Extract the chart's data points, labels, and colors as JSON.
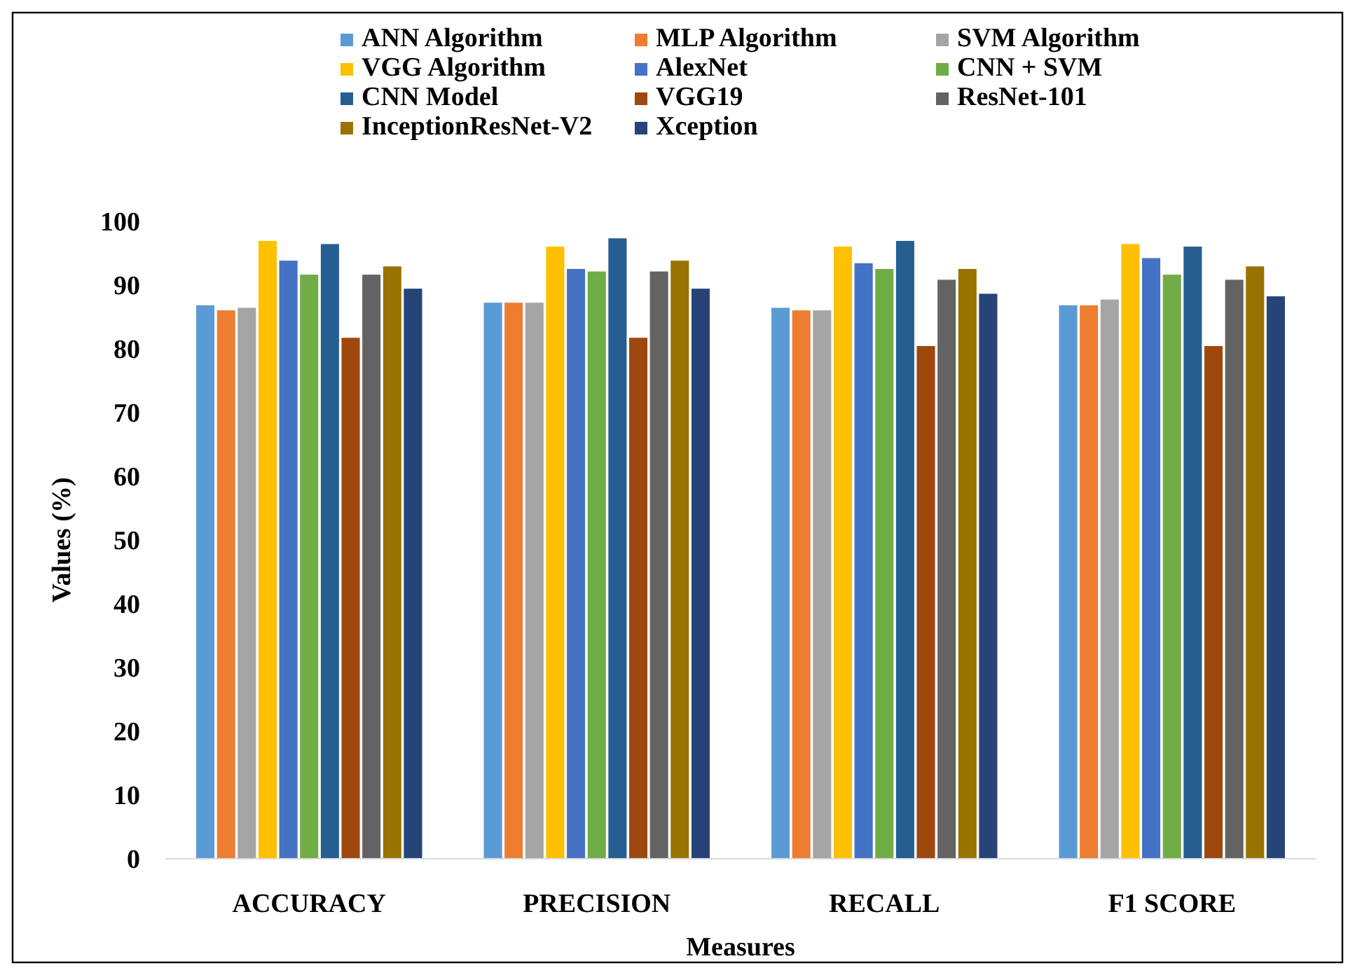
{
  "chart_data": {
    "type": "bar",
    "xlabel": "Measures",
    "ylabel": "Values (%)",
    "categories": [
      "ACCURACY",
      "PRECISION",
      "RECALL",
      "F1 SCORE"
    ],
    "ylim": [
      0,
      100
    ],
    "yticks": [
      0,
      10,
      20,
      30,
      40,
      50,
      60,
      70,
      80,
      90,
      100
    ],
    "grid": false,
    "legend": "top",
    "series": [
      {
        "name": "ANN Algorithm",
        "color": "#5b9bd5",
        "values": [
          86.9,
          87.3,
          86.5,
          86.9
        ]
      },
      {
        "name": "MLP Algorithm",
        "color": "#ed7d31",
        "values": [
          86.1,
          87.3,
          86.1,
          86.9
        ]
      },
      {
        "name": "SVM Algorithm",
        "color": "#a5a5a5",
        "values": [
          86.5,
          87.3,
          86.1,
          87.8
        ]
      },
      {
        "name": "VGG Algorithm",
        "color": "#ffc000",
        "values": [
          97.0,
          96.1,
          96.1,
          96.5
        ]
      },
      {
        "name": "AlexNet",
        "color": "#4472c4",
        "values": [
          93.9,
          92.6,
          93.5,
          94.3
        ]
      },
      {
        "name": "CNN + SVM",
        "color": "#70ad47",
        "values": [
          91.7,
          92.2,
          92.6,
          91.7
        ]
      },
      {
        "name": "CNN Model",
        "color": "#255e91",
        "values": [
          96.5,
          97.4,
          97.0,
          96.1
        ]
      },
      {
        "name": "VGG19",
        "color": "#9e480e",
        "values": [
          81.8,
          81.8,
          80.5,
          80.5
        ]
      },
      {
        "name": "ResNet-101",
        "color": "#636363",
        "values": [
          91.7,
          92.2,
          90.9,
          90.9
        ]
      },
      {
        "name": "InceptionResNet-V2",
        "color": "#997300",
        "values": [
          93.0,
          93.9,
          92.6,
          93.0
        ]
      },
      {
        "name": "Xception",
        "color": "#264478",
        "values": [
          89.5,
          89.5,
          88.7,
          88.3
        ]
      }
    ]
  }
}
